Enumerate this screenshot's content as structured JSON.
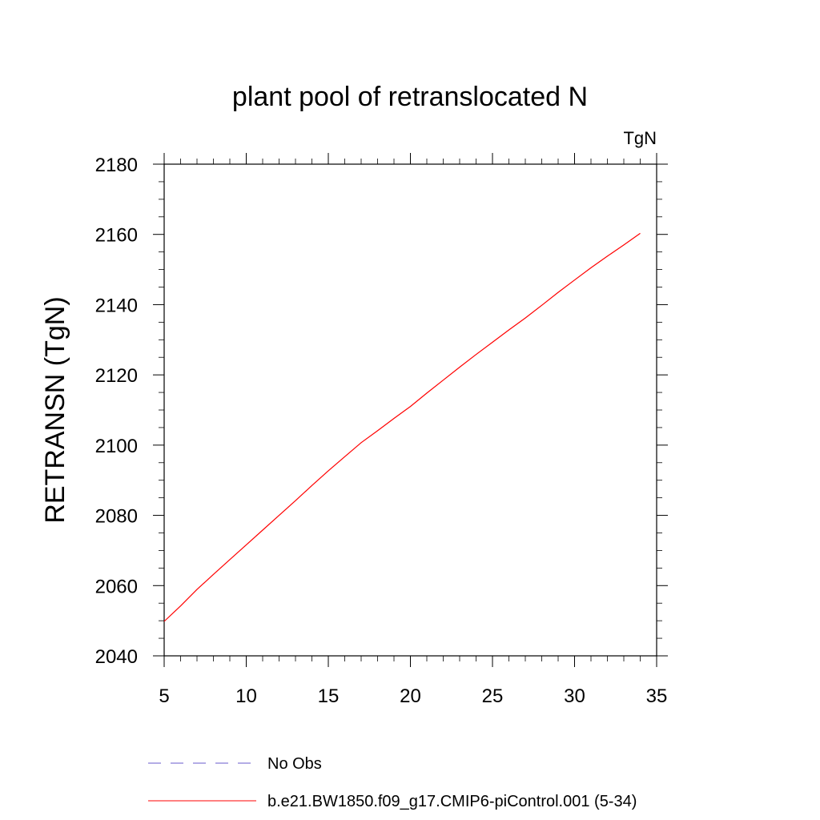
{
  "chart_data": {
    "type": "line",
    "title": "plant pool of retranslocated N",
    "units": "TgN",
    "xlabel": "",
    "ylabel": "RETRANSN  (TgN)",
    "xlim": [
      5,
      35
    ],
    "ylim": [
      2040,
      2180
    ],
    "xticks": [
      5,
      10,
      15,
      20,
      25,
      30,
      35
    ],
    "yticks": [
      2040,
      2060,
      2080,
      2100,
      2120,
      2140,
      2160,
      2180
    ],
    "grid": false,
    "legend_position": "bottom",
    "series": [
      {
        "name": "No Obs",
        "color": "#6a5acd",
        "dash": "dashed",
        "x": [],
        "y": []
      },
      {
        "name": "b.e21.BW1850.f09_g17.CMIP6-piControl.001 (5-34)",
        "color": "#ff0000",
        "dash": "solid",
        "x": [
          5,
          6,
          7,
          8,
          9,
          10,
          11,
          12,
          13,
          14,
          15,
          16,
          17,
          18,
          19,
          20,
          21,
          22,
          23,
          24,
          25,
          26,
          27,
          28,
          29,
          30,
          31,
          32,
          33,
          34
        ],
        "y": [
          2049.8,
          2054.2,
          2058.9,
          2063.2,
          2067.4,
          2071.6,
          2075.8,
          2080.0,
          2084.2,
          2088.5,
          2092.7,
          2096.7,
          2100.7,
          2104.1,
          2107.6,
          2111.0,
          2114.8,
          2118.5,
          2122.2,
          2125.8,
          2129.3,
          2132.8,
          2136.2,
          2139.8,
          2143.5,
          2147.0,
          2150.5,
          2153.8,
          2157.0,
          2160.3
        ]
      }
    ]
  }
}
